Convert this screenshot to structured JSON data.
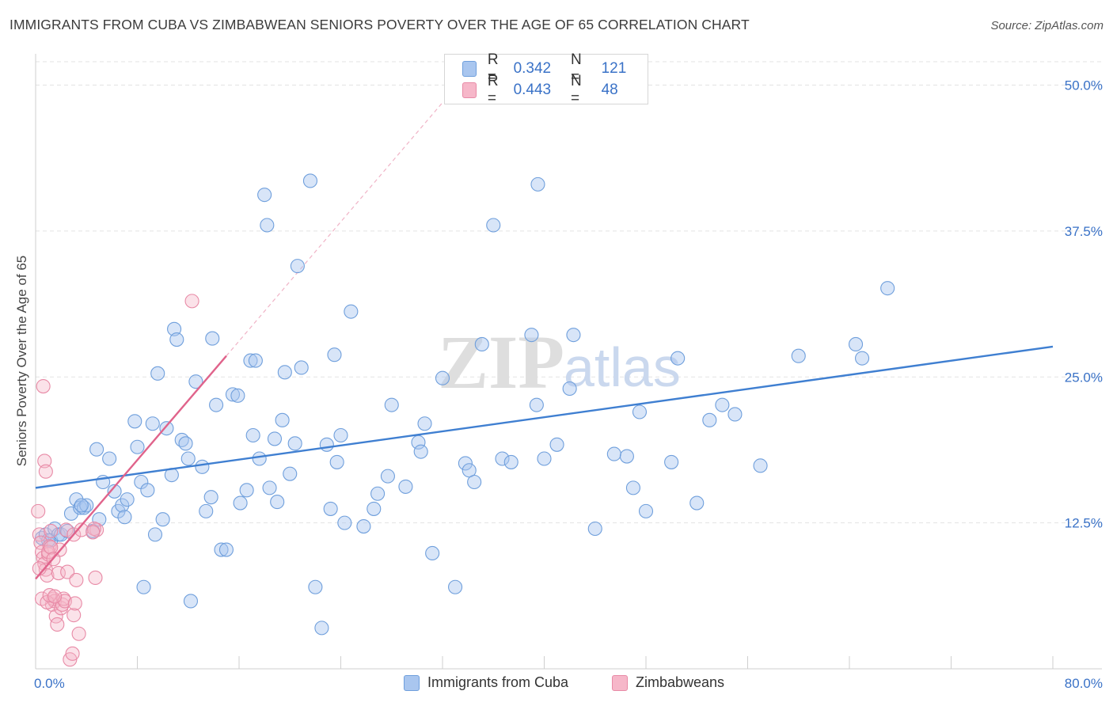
{
  "title": "IMMIGRANTS FROM CUBA VS ZIMBABWEAN SENIORS POVERTY OVER THE AGE OF 65 CORRELATION CHART",
  "source": "Source: ZipAtlas.com",
  "watermark": {
    "zip": "ZIP",
    "atlas": "atlas"
  },
  "legend": {
    "r_label": "R =",
    "n_label": "N =",
    "series": [
      {
        "name": "Immigrants from Cuba",
        "r": "0.342",
        "n": "121"
      },
      {
        "name": "Zimbabweans",
        "r": "0.443",
        "n": "48"
      }
    ]
  },
  "colors": {
    "cuba_fill": "#a9c6ef",
    "cuba_stroke": "#6f9fdc",
    "cuba_line": "#3f7fd1",
    "zim_fill": "#f6b7c9",
    "zim_stroke": "#e88aa6",
    "zim_line": "#e0638b",
    "axis_text": "#3a72c7",
    "grid": "#e3e3e3"
  },
  "chart_data": {
    "type": "scatter",
    "title": "IMMIGRANTS FROM CUBA VS ZIMBABWEAN SENIORS POVERTY OVER THE AGE OF 65 CORRELATION CHART",
    "xlabel": "",
    "ylabel": "Seniors Poverty Over the Age of 65",
    "xlim": [
      0,
      80
    ],
    "ylim": [
      0,
      52
    ],
    "x_tick_labels": [
      "0.0%",
      "80.0%"
    ],
    "y_ticks": [
      12.5,
      25.0,
      37.5,
      50.0
    ],
    "y_tick_labels": [
      "12.5%",
      "25.0%",
      "37.5%",
      "50.0%"
    ],
    "series": [
      {
        "name": "Immigrants from Cuba",
        "trend": {
          "x": [
            0,
            80
          ],
          "y": [
            15.5,
            27.6
          ]
        },
        "points": [
          [
            0.5,
            11.2
          ],
          [
            0.8,
            11.5
          ],
          [
            1.2,
            11.0
          ],
          [
            1.5,
            12.0
          ],
          [
            1.8,
            11.5
          ],
          [
            2.0,
            11.5
          ],
          [
            2.5,
            11.8
          ],
          [
            2.8,
            13.3
          ],
          [
            3.2,
            14.5
          ],
          [
            3.5,
            13.8
          ],
          [
            3.8,
            13.8
          ],
          [
            4.0,
            14.0
          ],
          [
            4.5,
            11.8
          ],
          [
            4.8,
            18.8
          ],
          [
            5.0,
            12.8
          ],
          [
            5.3,
            16.0
          ],
          [
            5.8,
            18.0
          ],
          [
            6.2,
            15.2
          ],
          [
            6.5,
            13.5
          ],
          [
            6.8,
            14.0
          ],
          [
            7.0,
            13.0
          ],
          [
            7.2,
            14.5
          ],
          [
            7.8,
            21.2
          ],
          [
            8.0,
            19.0
          ],
          [
            8.3,
            16.0
          ],
          [
            8.5,
            7.0
          ],
          [
            8.8,
            15.3
          ],
          [
            9.2,
            21.0
          ],
          [
            9.4,
            11.5
          ],
          [
            9.6,
            25.3
          ],
          [
            10.0,
            12.8
          ],
          [
            10.3,
            20.6
          ],
          [
            10.7,
            16.6
          ],
          [
            10.9,
            29.1
          ],
          [
            11.1,
            28.2
          ],
          [
            11.5,
            19.6
          ],
          [
            11.8,
            19.3
          ],
          [
            12.0,
            18.0
          ],
          [
            12.2,
            5.8
          ],
          [
            12.6,
            24.6
          ],
          [
            13.1,
            17.3
          ],
          [
            13.4,
            13.5
          ],
          [
            13.8,
            14.7
          ],
          [
            13.9,
            28.3
          ],
          [
            14.2,
            22.6
          ],
          [
            14.6,
            10.2
          ],
          [
            15.0,
            10.2
          ],
          [
            15.5,
            23.5
          ],
          [
            15.9,
            23.4
          ],
          [
            16.1,
            14.2
          ],
          [
            16.6,
            15.3
          ],
          [
            16.9,
            26.4
          ],
          [
            17.1,
            20.0
          ],
          [
            17.3,
            26.4
          ],
          [
            17.6,
            18.0
          ],
          [
            18.0,
            40.6
          ],
          [
            18.2,
            38.0
          ],
          [
            18.4,
            15.5
          ],
          [
            18.8,
            19.7
          ],
          [
            19.0,
            14.3
          ],
          [
            19.4,
            21.3
          ],
          [
            19.6,
            25.4
          ],
          [
            20.0,
            16.7
          ],
          [
            20.4,
            19.3
          ],
          [
            20.6,
            34.5
          ],
          [
            20.9,
            25.8
          ],
          [
            21.6,
            41.8
          ],
          [
            22.0,
            7.0
          ],
          [
            22.5,
            3.5
          ],
          [
            22.9,
            19.2
          ],
          [
            23.2,
            13.7
          ],
          [
            23.5,
            26.9
          ],
          [
            23.7,
            17.7
          ],
          [
            24.0,
            20.0
          ],
          [
            24.3,
            12.5
          ],
          [
            24.8,
            30.6
          ],
          [
            25.8,
            12.2
          ],
          [
            26.6,
            13.7
          ],
          [
            26.9,
            15.0
          ],
          [
            27.7,
            16.5
          ],
          [
            28.0,
            22.6
          ],
          [
            29.1,
            15.6
          ],
          [
            30.1,
            19.4
          ],
          [
            30.3,
            18.6
          ],
          [
            30.6,
            21.0
          ],
          [
            31.2,
            9.9
          ],
          [
            32.0,
            24.9
          ],
          [
            33.0,
            7.0
          ],
          [
            33.8,
            17.6
          ],
          [
            34.1,
            17.0
          ],
          [
            34.5,
            16.0
          ],
          [
            35.1,
            27.8
          ],
          [
            36.0,
            38.0
          ],
          [
            36.7,
            18.0
          ],
          [
            37.4,
            17.7
          ],
          [
            39.0,
            28.6
          ],
          [
            39.4,
            22.6
          ],
          [
            40.0,
            18.0
          ],
          [
            41.0,
            19.2
          ],
          [
            42.0,
            24.0
          ],
          [
            42.3,
            28.6
          ],
          [
            44.0,
            12.0
          ],
          [
            45.5,
            18.4
          ],
          [
            46.5,
            18.2
          ],
          [
            47.0,
            15.5
          ],
          [
            47.5,
            22.0
          ],
          [
            48.0,
            13.5
          ],
          [
            50.0,
            17.7
          ],
          [
            50.5,
            26.6
          ],
          [
            52.0,
            14.2
          ],
          [
            53.0,
            21.3
          ],
          [
            54.0,
            22.6
          ],
          [
            55.0,
            21.8
          ],
          [
            57.0,
            17.4
          ],
          [
            60.0,
            26.8
          ],
          [
            64.5,
            27.8
          ],
          [
            65.0,
            26.6
          ],
          [
            67.0,
            32.6
          ],
          [
            39.5,
            41.5
          ],
          [
            1.0,
            11.0
          ],
          [
            3.6,
            14.0
          ]
        ]
      },
      {
        "name": "Zimbabweans",
        "trend": {
          "x": [
            0,
            15
          ],
          "y": [
            7.7,
            26.8
          ]
        },
        "trend_extension": {
          "x": [
            15,
            32
          ],
          "y": [
            26.8,
            48.5
          ]
        },
        "points": [
          [
            0.2,
            13.5
          ],
          [
            0.3,
            11.5
          ],
          [
            0.4,
            10.8
          ],
          [
            0.5,
            10.0
          ],
          [
            0.6,
            9.5
          ],
          [
            0.7,
            9.0
          ],
          [
            0.8,
            8.5
          ],
          [
            0.9,
            8.0
          ],
          [
            1.0,
            9.8
          ],
          [
            1.1,
            10.5
          ],
          [
            1.2,
            11.8
          ],
          [
            1.3,
            5.5
          ],
          [
            1.4,
            6.0
          ],
          [
            1.5,
            5.8
          ],
          [
            1.6,
            4.5
          ],
          [
            1.7,
            3.8
          ],
          [
            1.8,
            8.2
          ],
          [
            1.9,
            10.2
          ],
          [
            2.0,
            5.2
          ],
          [
            2.1,
            5.5
          ],
          [
            2.2,
            6.0
          ],
          [
            2.3,
            5.8
          ],
          [
            2.5,
            8.3
          ],
          [
            2.7,
            0.8
          ],
          [
            2.9,
            1.3
          ],
          [
            3.0,
            4.6
          ],
          [
            3.1,
            5.6
          ],
          [
            3.2,
            7.6
          ],
          [
            3.4,
            3.0
          ],
          [
            0.6,
            24.2
          ],
          [
            0.7,
            17.8
          ],
          [
            0.8,
            16.9
          ],
          [
            1.0,
            10.0
          ],
          [
            1.2,
            10.4
          ],
          [
            1.4,
            9.4
          ],
          [
            2.4,
            11.9
          ],
          [
            3.0,
            11.5
          ],
          [
            3.6,
            11.9
          ],
          [
            4.8,
            11.9
          ],
          [
            4.6,
            12.0
          ],
          [
            4.5,
            11.7
          ],
          [
            0.3,
            8.6
          ],
          [
            0.5,
            6.0
          ],
          [
            0.9,
            5.7
          ],
          [
            1.1,
            6.3
          ],
          [
            1.5,
            6.2
          ],
          [
            4.7,
            7.8
          ],
          [
            12.3,
            31.5
          ]
        ]
      }
    ]
  }
}
